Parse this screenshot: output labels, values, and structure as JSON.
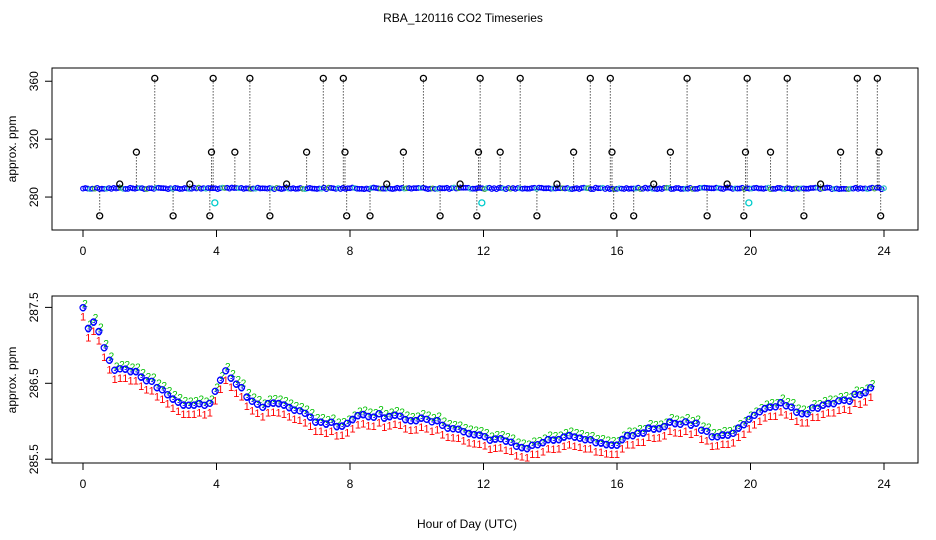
{
  "figure": {
    "title": "RBA_120116  CO2 Timeseries",
    "xlabel": "Hour of Day (UTC)"
  },
  "chart_data": [
    {
      "type": "scatter",
      "ylabel": "approx. ppm",
      "xlim": [
        0,
        24
      ],
      "ylim": [
        260,
        365
      ],
      "x_ticks": [
        0,
        4,
        8,
        12,
        16,
        20,
        24
      ],
      "y_ticks": [
        280,
        320,
        360
      ],
      "grid": false,
      "colors": {
        "raw": "#000000",
        "series_a": "#0000ff",
        "series_b": "#00cccc",
        "series_c": "#ff0000"
      },
      "baseline": 286,
      "spikes_high": [
        {
          "x": 2.15,
          "y": 362
        },
        {
          "x": 3.9,
          "y": 362
        },
        {
          "x": 5.0,
          "y": 362
        },
        {
          "x": 7.2,
          "y": 362
        },
        {
          "x": 7.8,
          "y": 362
        },
        {
          "x": 10.2,
          "y": 362
        },
        {
          "x": 11.9,
          "y": 362
        },
        {
          "x": 13.1,
          "y": 362
        },
        {
          "x": 15.2,
          "y": 362
        },
        {
          "x": 15.8,
          "y": 362
        },
        {
          "x": 18.1,
          "y": 362
        },
        {
          "x": 19.9,
          "y": 362
        },
        {
          "x": 21.1,
          "y": 362
        },
        {
          "x": 23.2,
          "y": 362
        },
        {
          "x": 23.8,
          "y": 362
        }
      ],
      "spikes_mid": [
        {
          "x": 1.6,
          "y": 311
        },
        {
          "x": 3.85,
          "y": 311
        },
        {
          "x": 4.55,
          "y": 311
        },
        {
          "x": 6.7,
          "y": 311
        },
        {
          "x": 7.85,
          "y": 311
        },
        {
          "x": 9.6,
          "y": 311
        },
        {
          "x": 11.85,
          "y": 311
        },
        {
          "x": 12.5,
          "y": 311
        },
        {
          "x": 14.7,
          "y": 311
        },
        {
          "x": 15.85,
          "y": 311
        },
        {
          "x": 17.6,
          "y": 311
        },
        {
          "x": 19.85,
          "y": 311
        },
        {
          "x": 20.6,
          "y": 311
        },
        {
          "x": 22.7,
          "y": 311
        },
        {
          "x": 23.85,
          "y": 311
        }
      ],
      "spikes_low": [
        {
          "x": 0.5,
          "y": 267
        },
        {
          "x": 2.7,
          "y": 267
        },
        {
          "x": 3.8,
          "y": 267
        },
        {
          "x": 5.6,
          "y": 267
        },
        {
          "x": 7.9,
          "y": 267
        },
        {
          "x": 8.6,
          "y": 267
        },
        {
          "x": 10.7,
          "y": 267
        },
        {
          "x": 11.8,
          "y": 267
        },
        {
          "x": 13.6,
          "y": 267
        },
        {
          "x": 15.9,
          "y": 267
        },
        {
          "x": 16.5,
          "y": 267
        },
        {
          "x": 18.7,
          "y": 267
        },
        {
          "x": 19.8,
          "y": 267
        },
        {
          "x": 21.6,
          "y": 267
        },
        {
          "x": 23.9,
          "y": 267
        }
      ],
      "spikes_small": [
        {
          "x": 1.1,
          "y": 289
        },
        {
          "x": 3.2,
          "y": 289
        },
        {
          "x": 6.1,
          "y": 289
        },
        {
          "x": 9.1,
          "y": 289
        },
        {
          "x": 11.3,
          "y": 289
        },
        {
          "x": 14.2,
          "y": 289
        },
        {
          "x": 17.1,
          "y": 289
        },
        {
          "x": 19.3,
          "y": 289
        },
        {
          "x": 22.1,
          "y": 289
        }
      ],
      "cyan_outliers": [
        {
          "x": 3.95,
          "y": 276
        },
        {
          "x": 11.95,
          "y": 276
        },
        {
          "x": 19.95,
          "y": 276
        }
      ]
    },
    {
      "type": "scatter",
      "ylabel": "approx. ppm",
      "xlim": [
        0,
        24
      ],
      "ylim": [
        285.45,
        287.65
      ],
      "x_ticks": [
        0,
        4,
        8,
        12,
        16,
        20,
        24
      ],
      "y_ticks": [
        285.5,
        286.5,
        287.5
      ],
      "grid": false,
      "marker_symbols": [
        "1",
        "2",
        "3"
      ],
      "colors": {
        "symbol_1": "#ff0000",
        "symbol_2": "#00c000",
        "symbol_3": "#0000ff",
        "circle": "#0000ff"
      },
      "series_offsets": {
        "symbol_1": -0.12,
        "symbol_2": 0.05,
        "symbol_3": 0.0
      },
      "profile": [
        {
          "x": 0.0,
          "y": 287.5
        },
        {
          "x": 0.15,
          "y": 287.25
        },
        {
          "x": 0.4,
          "y": 287.3
        },
        {
          "x": 0.6,
          "y": 287.0
        },
        {
          "x": 0.9,
          "y": 286.65
        },
        {
          "x": 1.3,
          "y": 286.7
        },
        {
          "x": 1.8,
          "y": 286.6
        },
        {
          "x": 2.5,
          "y": 286.35
        },
        {
          "x": 3.2,
          "y": 286.2
        },
        {
          "x": 3.8,
          "y": 286.25
        },
        {
          "x": 4.25,
          "y": 286.7
        },
        {
          "x": 4.6,
          "y": 286.5
        },
        {
          "x": 5.2,
          "y": 286.2
        },
        {
          "x": 6.0,
          "y": 286.25
        },
        {
          "x": 7.0,
          "y": 286.0
        },
        {
          "x": 7.8,
          "y": 285.95
        },
        {
          "x": 8.3,
          "y": 286.1
        },
        {
          "x": 9.5,
          "y": 286.05
        },
        {
          "x": 10.5,
          "y": 286.0
        },
        {
          "x": 11.5,
          "y": 285.85
        },
        {
          "x": 12.5,
          "y": 285.75
        },
        {
          "x": 13.2,
          "y": 285.65
        },
        {
          "x": 14.0,
          "y": 285.75
        },
        {
          "x": 14.8,
          "y": 285.8
        },
        {
          "x": 15.8,
          "y": 285.65
        },
        {
          "x": 16.3,
          "y": 285.8
        },
        {
          "x": 17.0,
          "y": 285.9
        },
        {
          "x": 17.8,
          "y": 286.0
        },
        {
          "x": 18.4,
          "y": 285.95
        },
        {
          "x": 18.8,
          "y": 285.8
        },
        {
          "x": 19.5,
          "y": 285.85
        },
        {
          "x": 20.2,
          "y": 286.1
        },
        {
          "x": 21.0,
          "y": 286.25
        },
        {
          "x": 21.5,
          "y": 286.1
        },
        {
          "x": 22.2,
          "y": 286.2
        },
        {
          "x": 23.0,
          "y": 286.3
        },
        {
          "x": 23.6,
          "y": 286.45
        }
      ]
    }
  ]
}
